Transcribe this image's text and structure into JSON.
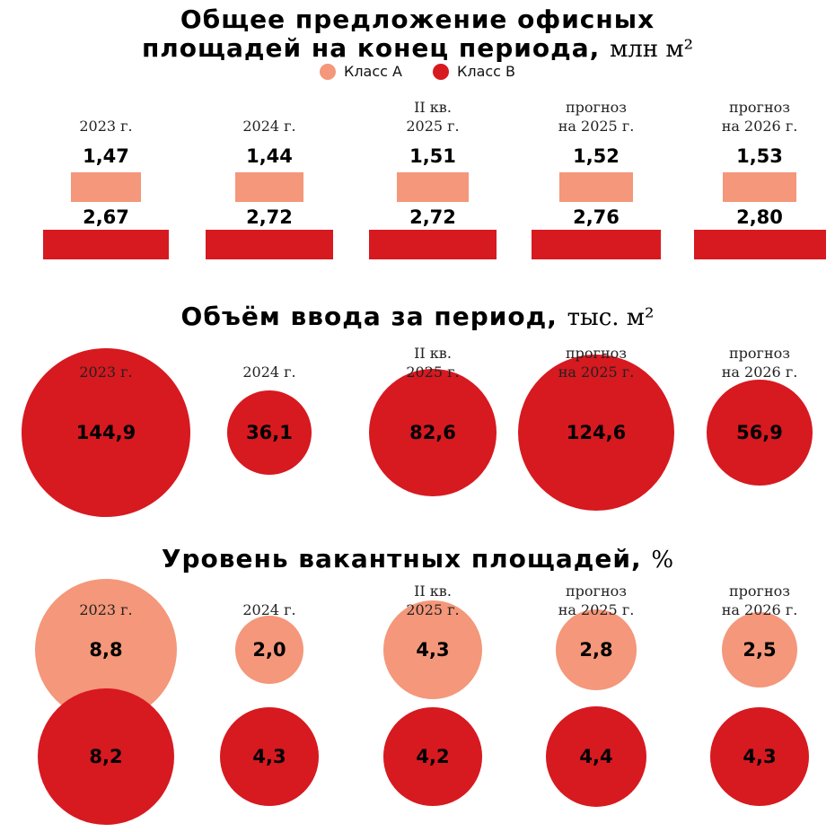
{
  "colors": {
    "class_a": "#f4977a",
    "class_b": "#d71920"
  },
  "legend": {
    "class_a": "Класс А",
    "class_b": "Класс В"
  },
  "periods": [
    "2023 г.",
    "2024 г.",
    "II кв.\n2025 г.",
    "прогноз\nна 2025 г.",
    "прогноз\nна 2026 г."
  ],
  "section1": {
    "title_line1": "Общее предложение офисных",
    "title_line2": "площадей на конец периода,",
    "unit": "млн м²"
  },
  "section2": {
    "title": "Объём ввода за период,",
    "unit": "тыс. м²"
  },
  "section3": {
    "title": "Уровень вакантных площадей,",
    "unit": "%"
  },
  "chart_data": [
    {
      "type": "bar",
      "title": "Общее предложение офисных площадей на конец периода, млн м²",
      "categories": [
        "2023 г.",
        "2024 г.",
        "II кв. 2025 г.",
        "прогноз на 2025 г.",
        "прогноз на 2026 г."
      ],
      "series": [
        {
          "name": "Класс А",
          "values": [
            1.47,
            1.44,
            1.51,
            1.52,
            1.53
          ],
          "labels": [
            "1,47",
            "1,44",
            "1,51",
            "1,52",
            "1,53"
          ]
        },
        {
          "name": "Класс В",
          "values": [
            2.67,
            2.72,
            2.72,
            2.76,
            2.8
          ],
          "labels": [
            "2,67",
            "2,72",
            "2,72",
            "2,76",
            "2,80"
          ]
        }
      ]
    },
    {
      "type": "scatter",
      "title": "Объём ввода за период, тыс. м²",
      "categories": [
        "2023 г.",
        "2024 г.",
        "II кв. 2025 г.",
        "прогноз на 2025 г.",
        "прогноз на 2026 г."
      ],
      "values": [
        144.9,
        36.1,
        82.6,
        124.6,
        56.9
      ],
      "labels": [
        "144,9",
        "36,1",
        "82,6",
        "124,6",
        "56,9"
      ]
    },
    {
      "type": "scatter",
      "title": "Уровень вакантных площадей, %",
      "categories": [
        "2023 г.",
        "2024 г.",
        "II кв. 2025 г.",
        "прогноз на 2025 г.",
        "прогноз на 2026 г."
      ],
      "series": [
        {
          "name": "Класс А",
          "values": [
            8.8,
            2.0,
            4.3,
            2.8,
            2.5
          ],
          "labels": [
            "8,8",
            "2,0",
            "4,3",
            "2,8",
            "2,5"
          ]
        },
        {
          "name": "Класс В",
          "values": [
            8.2,
            4.3,
            4.2,
            4.4,
            4.3
          ],
          "labels": [
            "8,2",
            "4,3",
            "4,2",
            "4,4",
            "4,3"
          ]
        }
      ]
    }
  ]
}
